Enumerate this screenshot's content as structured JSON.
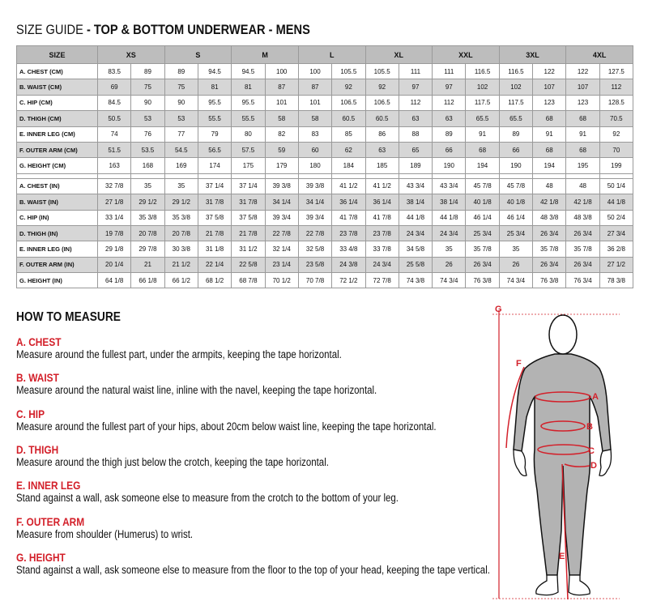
{
  "title": {
    "prefix": "SIZE GUIDE",
    "main": "- TOP & BOTTOM UNDERWEAR - MENS"
  },
  "table": {
    "size_header": "SIZE",
    "sizes": [
      "XS",
      "S",
      "M",
      "L",
      "XL",
      "XXL",
      "3XL",
      "4XL"
    ],
    "cm_rows": [
      {
        "label": "A. CHEST (CM)",
        "values": [
          "83.5",
          "89",
          "89",
          "94.5",
          "94.5",
          "100",
          "100",
          "105.5",
          "105.5",
          "111",
          "111",
          "116.5",
          "116.5",
          "122",
          "122",
          "127.5"
        ]
      },
      {
        "label": "B. WAIST (CM)",
        "values": [
          "69",
          "75",
          "75",
          "81",
          "81",
          "87",
          "87",
          "92",
          "92",
          "97",
          "97",
          "102",
          "102",
          "107",
          "107",
          "112"
        ]
      },
      {
        "label": "C. HIP (CM)",
        "values": [
          "84.5",
          "90",
          "90",
          "95.5",
          "95.5",
          "101",
          "101",
          "106.5",
          "106.5",
          "112",
          "112",
          "117.5",
          "117.5",
          "123",
          "123",
          "128.5"
        ]
      },
      {
        "label": "D. THIGH (CM)",
        "values": [
          "50.5",
          "53",
          "53",
          "55.5",
          "55.5",
          "58",
          "58",
          "60.5",
          "60.5",
          "63",
          "63",
          "65.5",
          "65.5",
          "68",
          "68",
          "70.5"
        ]
      },
      {
        "label": "E. INNER LEG (CM)",
        "values": [
          "74",
          "76",
          "77",
          "79",
          "80",
          "82",
          "83",
          "85",
          "86",
          "88",
          "89",
          "91",
          "89",
          "91",
          "91",
          "92"
        ]
      },
      {
        "label": "F. OUTER ARM (CM)",
        "values": [
          "51.5",
          "53.5",
          "54.5",
          "56.5",
          "57.5",
          "59",
          "60",
          "62",
          "63",
          "65",
          "66",
          "68",
          "66",
          "68",
          "68",
          "70"
        ]
      },
      {
        "label": "G. HEIGHT (CM)",
        "values": [
          "163",
          "168",
          "169",
          "174",
          "175",
          "179",
          "180",
          "184",
          "185",
          "189",
          "190",
          "194",
          "190",
          "194",
          "195",
          "199"
        ]
      }
    ],
    "in_rows": [
      {
        "label": "A. CHEST (IN)",
        "values": [
          "32 7/8",
          "35",
          "35",
          "37 1/4",
          "37 1/4",
          "39 3/8",
          "39 3/8",
          "41 1/2",
          "41 1/2",
          "43 3/4",
          "43 3/4",
          "45 7/8",
          "45 7/8",
          "48",
          "48",
          "50 1/4"
        ]
      },
      {
        "label": "B. WAIST (IN)",
        "values": [
          "27 1/8",
          "29 1/2",
          "29 1/2",
          "31 7/8",
          "31 7/8",
          "34 1/4",
          "34 1/4",
          "36 1/4",
          "36 1/4",
          "38 1/4",
          "38 1/4",
          "40 1/8",
          "40 1/8",
          "42 1/8",
          "42 1/8",
          "44 1/8"
        ]
      },
      {
        "label": "C. HIP (IN)",
        "values": [
          "33 1/4",
          "35 3/8",
          "35 3/8",
          "37 5/8",
          "37 5/8",
          "39 3/4",
          "39 3/4",
          "41 7/8",
          "41 7/8",
          "44 1/8",
          "44 1/8",
          "46 1/4",
          "46 1/4",
          "48 3/8",
          "48 3/8",
          "50 2/4"
        ]
      },
      {
        "label": "D. THIGH (IN)",
        "values": [
          "19 7/8",
          "20 7/8",
          "20 7/8",
          "21 7/8",
          "21 7/8",
          "22 7/8",
          "22 7/8",
          "23 7/8",
          "23 7/8",
          "24 3/4",
          "24 3/4",
          "25 3/4",
          "25 3/4",
          "26 3/4",
          "26 3/4",
          "27 3/4"
        ]
      },
      {
        "label": "E. INNER LEG (IN)",
        "values": [
          "29 1/8",
          "29 7/8",
          "30 3/8",
          "31 1/8",
          "31 1/2",
          "32 1/4",
          "32 5/8",
          "33 4/8",
          "33 7/8",
          "34 5/8",
          "35",
          "35 7/8",
          "35",
          "35 7/8",
          "35 7/8",
          "36 2/8"
        ]
      },
      {
        "label": "F. OUTER ARM (IN)",
        "values": [
          "20 1/4",
          "21",
          "21 1/2",
          "22 1/4",
          "22 5/8",
          "23 1/4",
          "23 5/8",
          "24 3/8",
          "24 3/4",
          "25 5/8",
          "26",
          "26 3/4",
          "26",
          "26 3/4",
          "26 3/4",
          "27 1/2"
        ]
      },
      {
        "label": "G. HEIGHT (IN)",
        "values": [
          "64 1/8",
          "66 1/8",
          "66 1/2",
          "68 1/2",
          "68 7/8",
          "70 1/2",
          "70 7/8",
          "72 1/2",
          "72 7/8",
          "74 3/8",
          "74 3/4",
          "76 3/8",
          "74 3/4",
          "76 3/8",
          "76 3/4",
          "78 3/8"
        ]
      }
    ]
  },
  "how_to_measure": {
    "heading": "HOW TO MEASURE",
    "items": [
      {
        "title": "A. CHEST",
        "text": "Measure around the fullest part, under the armpits, keeping the tape horizontal."
      },
      {
        "title": "B. WAIST",
        "text": "Measure around the natural waist line, inline with the navel, keeping the tape horizontal."
      },
      {
        "title": "C. HIP",
        "text": "Measure around the fullest part of your hips, about 20cm below waist line, keeping the tape horizontal."
      },
      {
        "title": "D. THIGH",
        "text": "Measure around the thigh just below the crotch, keeping the tape horizontal."
      },
      {
        "title": "E. INNER LEG",
        "text": "Stand against a wall, ask someone else to measure from the crotch to the bottom of your leg."
      },
      {
        "title": "F. OUTER ARM",
        "text": "Measure from shoulder (Humerus) to wrist."
      },
      {
        "title": "G. HEIGHT",
        "text": "Stand against a wall, ask someone else to measure from the floor to the top of your head, keeping the tape vertical."
      }
    ]
  },
  "figure": {
    "labels": {
      "a": "A",
      "b": "B",
      "c": "C",
      "d": "D",
      "e": "E",
      "f": "F",
      "g": "G"
    },
    "accent_color": "#d3202a",
    "body_color": "#b3b3b3"
  }
}
